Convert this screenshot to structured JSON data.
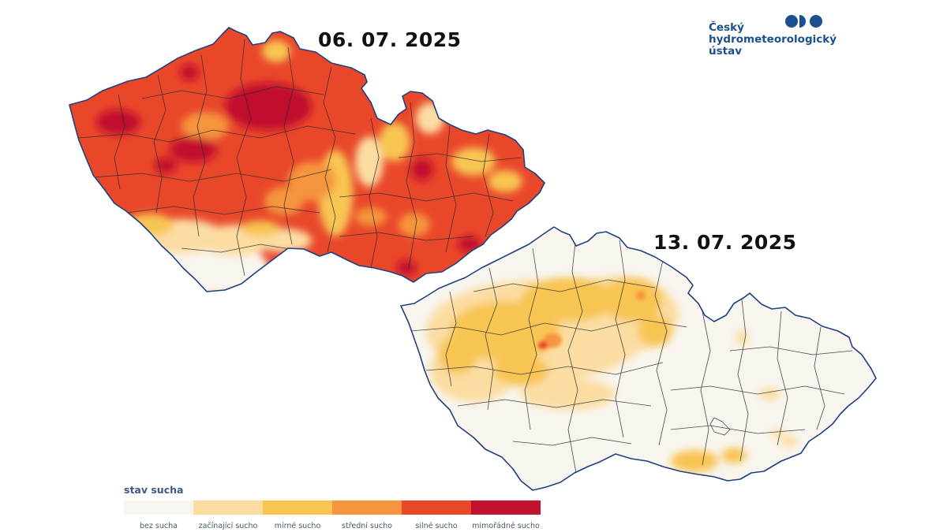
{
  "maps": [
    {
      "date": "06. 07. 2025",
      "condition": "silné sucho"
    },
    {
      "date": "13. 07. 2025",
      "condition": "mírné sucho"
    }
  ],
  "logo": {
    "line1": "Český",
    "line2": "hydrometeorologický",
    "line3": "ústav"
  },
  "legend": {
    "title": "stav sucha",
    "items": [
      {
        "label": "bez sucha",
        "color": "#f8f5ef"
      },
      {
        "label": "začínající sucho",
        "color": "#fbdda2"
      },
      {
        "label": "mírné sucho",
        "color": "#f8c553"
      },
      {
        "label": "střední sucho",
        "color": "#f5953e"
      },
      {
        "label": "silné sucho",
        "color": "#e9472a"
      },
      {
        "label": "mimořádné sucho",
        "color": "#c1112e"
      }
    ]
  },
  "colors": {
    "border": "#1f3f7f",
    "district_lines": "#2b2b2b",
    "logo": "#1c4f8f"
  }
}
